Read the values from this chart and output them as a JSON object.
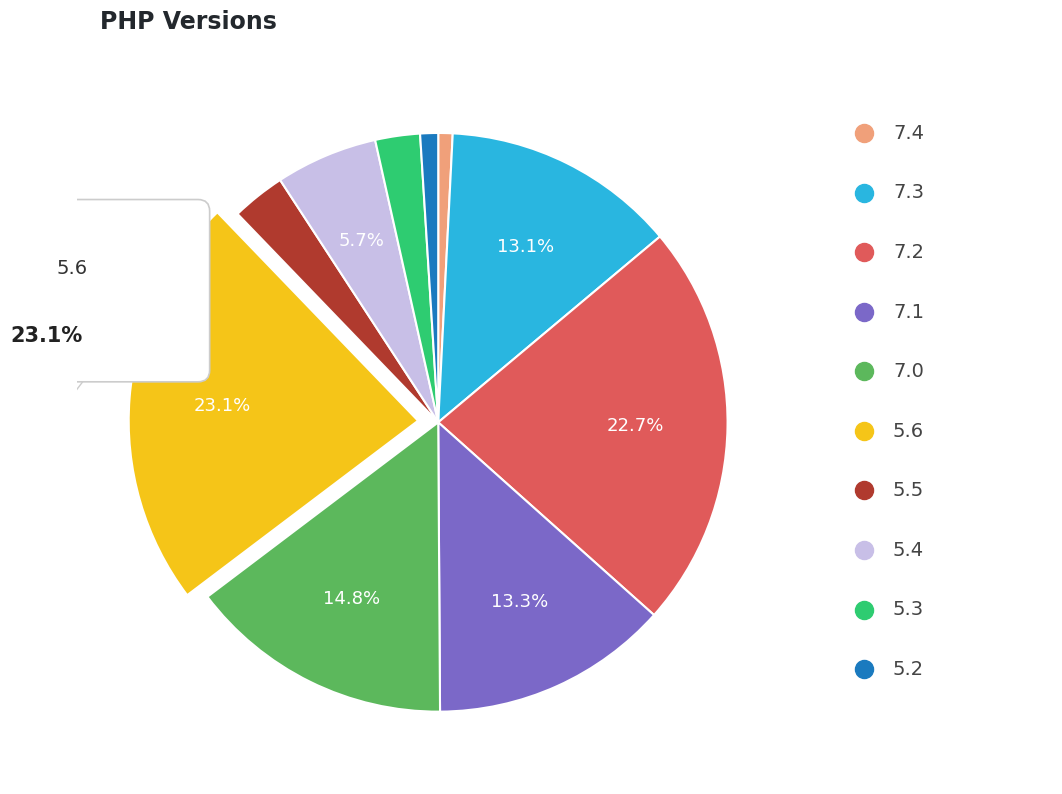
{
  "title": "PHP Versions",
  "title_color": "#23282d",
  "background_color": "#ffffff",
  "slices": [
    {
      "label": "7.4",
      "value": 0.8,
      "color": "#f0a07a",
      "pct_label": ""
    },
    {
      "label": "7.3",
      "value": 13.1,
      "color": "#29b6e0",
      "pct_label": "13.1%"
    },
    {
      "label": "7.2",
      "value": 22.7,
      "color": "#e05a5a",
      "pct_label": "22.7%"
    },
    {
      "label": "7.1",
      "value": 13.3,
      "color": "#7b68c8",
      "pct_label": "13.3%"
    },
    {
      "label": "7.0",
      "value": 14.8,
      "color": "#5cb85c",
      "pct_label": "14.8%"
    },
    {
      "label": "5.6",
      "value": 23.1,
      "color": "#f5c518",
      "pct_label": "23.1%"
    },
    {
      "label": "5.5",
      "value": 3.0,
      "color": "#b03a2e",
      "pct_label": ""
    },
    {
      "label": "5.4",
      "value": 5.7,
      "color": "#c8bfe7",
      "pct_label": "5.7%"
    },
    {
      "label": "5.3",
      "value": 2.5,
      "color": "#2ecc71",
      "pct_label": ""
    },
    {
      "label": "5.2",
      "value": 1.0,
      "color": "#1a7abf",
      "pct_label": ""
    }
  ],
  "explode_index": 5,
  "explode_amount": 0.07,
  "legend_labels": [
    "7.4",
    "7.3",
    "7.2",
    "7.1",
    "7.0",
    "5.6",
    "5.5",
    "5.4",
    "5.3",
    "5.2"
  ],
  "legend_colors": [
    "#f0a07a",
    "#29b6e0",
    "#e05a5a",
    "#7b68c8",
    "#5cb85c",
    "#f5c518",
    "#b03a2e",
    "#c8bfe7",
    "#2ecc71",
    "#1a7abf"
  ],
  "pct_label_color": "#ffffff",
  "pct_fontsize": 13,
  "title_fontsize": 17,
  "tooltip": {
    "label": "5.6",
    "pct": "23.1%",
    "color": "#f5c518"
  }
}
